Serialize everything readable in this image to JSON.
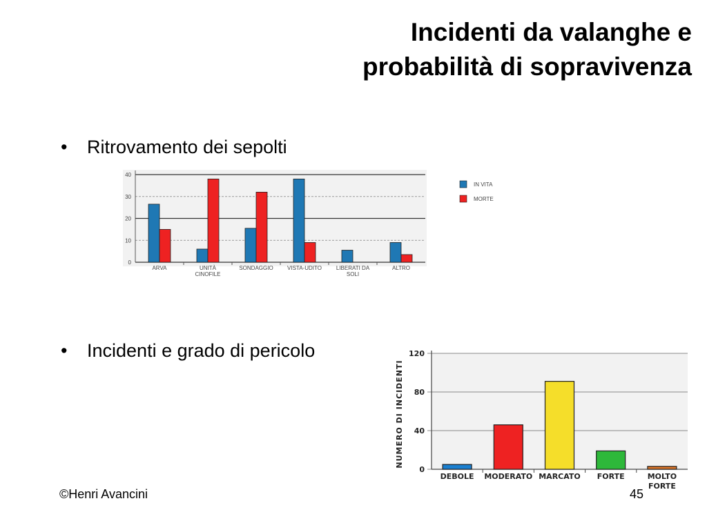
{
  "slide": {
    "title_line1": "Incidenti da valanghe e",
    "title_line2": "probabilità di sopravivenza",
    "bullets": [
      "Ritrovamento dei sepolti",
      "Incidenti e grado di pericolo"
    ],
    "footer": "©Henri Avancini",
    "page_number": "45"
  },
  "chart_data": [
    {
      "type": "bar",
      "categories": [
        [
          "ARVA"
        ],
        [
          "UNITÀ",
          "CINOFILE"
        ],
        [
          "SONDAGGIO"
        ],
        [
          "VISTA-UDITO"
        ],
        [
          "LIBERATI DA",
          "SOLI"
        ],
        [
          "ALTRO"
        ]
      ],
      "series": [
        {
          "name": "IN VITA",
          "values": [
            26.5,
            6,
            15.5,
            38,
            5.5,
            9
          ],
          "color": "#1f78b4"
        },
        {
          "name": "MORTE",
          "values": [
            15,
            38,
            32,
            9,
            0,
            3.5
          ],
          "color": "#ee2222"
        }
      ],
      "yticks": [
        "0",
        "10",
        "20",
        "30",
        "40"
      ],
      "ylim": [
        0,
        40
      ],
      "legend_position": "right",
      "grid": true
    },
    {
      "type": "bar",
      "ylabel": "NUMERO DI INCIDENTI",
      "categories": [
        [
          "DEBOLE"
        ],
        [
          "MODERATO"
        ],
        [
          "MARCATO"
        ],
        [
          "FORTE"
        ],
        [
          "MOLTO",
          "FORTE"
        ]
      ],
      "values": [
        5,
        46,
        91,
        19,
        3
      ],
      "colors": [
        "#1a7fd0",
        "#ee2222",
        "#f5de2a",
        "#2eb83a",
        "#d8742a"
      ],
      "yticks": [
        "0",
        "40",
        "80",
        "120"
      ],
      "ylim": [
        0,
        120
      ],
      "grid": true
    }
  ]
}
